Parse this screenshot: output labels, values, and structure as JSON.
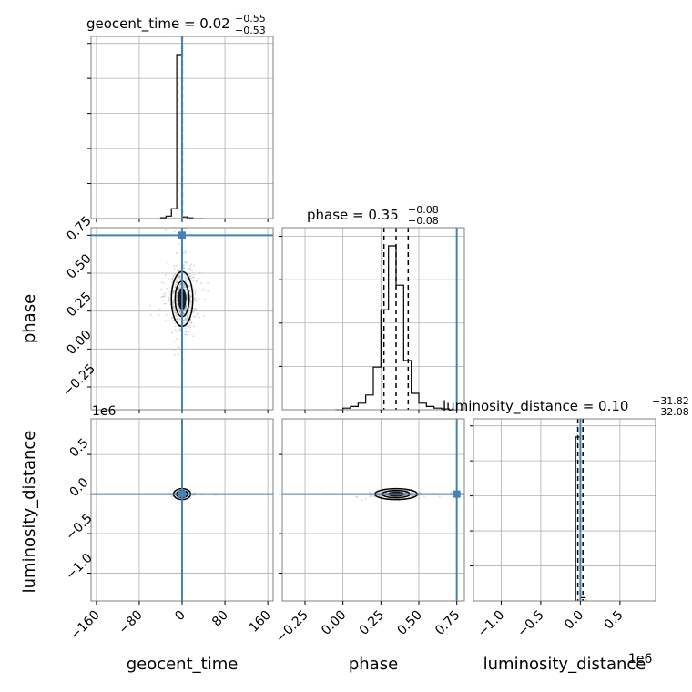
{
  "colors": {
    "truth": "#4682b4",
    "hist": "#000000",
    "grid": "#b0b0b0",
    "points": "#8c8c8c",
    "frame": "#808080",
    "background": "#ffffff"
  },
  "chart_data": {
    "type": "corner",
    "parameters": [
      "geocent_time",
      "phase",
      "luminosity_distance"
    ],
    "truths": {
      "geocent_time": 0,
      "phase": 0.75,
      "luminosity_distance": 0
    },
    "grid": true,
    "titles": [
      {
        "param": "geocent_time",
        "main": "geocent_time = 0.02",
        "sup": "+0.55",
        "sub": "−0.53"
      },
      {
        "param": "phase",
        "main": "phase = 0.35",
        "sup": "+0.08",
        "sub": "−0.08"
      },
      {
        "param": "luminosity_distance",
        "main": "luminosity_distance = 0.10",
        "sup": "+31.82",
        "sub": "−32.08"
      }
    ],
    "axes": {
      "geocent_time": {
        "range": [
          -170,
          170
        ],
        "ticks": [
          -160,
          -80,
          0,
          80,
          160
        ],
        "tick_labels": [
          "−160",
          "−80",
          "0",
          "80",
          "160"
        ],
        "label": "geocent_time"
      },
      "phase": {
        "range": [
          -0.4,
          0.8
        ],
        "ticks": [
          -0.25,
          0.0,
          0.25,
          0.5,
          0.75
        ],
        "tick_labels": [
          "−0.25",
          "0.00",
          "0.25",
          "0.50",
          "0.75"
        ],
        "label": "phase"
      },
      "luminosity_distance": {
        "range": [
          -1.35,
          0.95
        ],
        "ticks": [
          -1.0,
          -0.5,
          0.0,
          0.5
        ],
        "tick_labels": [
          "−1.0",
          "−0.5",
          "0.0",
          "0.5"
        ],
        "label": "luminosity_distance",
        "offset": "1e6"
      }
    },
    "histograms": {
      "geocent_time": {
        "bins": [
          -40,
          -30,
          -20,
          -10,
          0,
          10,
          20,
          30,
          40
        ],
        "values": [
          0.005,
          0.015,
          0.06,
          1.0,
          0.01,
          0.004,
          0.0,
          0.0
        ],
        "quantiles": [
          -0.51,
          0.02,
          0.57
        ],
        "yticks": 5
      },
      "phase": {
        "bins": [
          -0.05,
          0.0,
          0.05,
          0.1,
          0.15,
          0.2,
          0.25,
          0.3,
          0.35,
          0.4,
          0.45,
          0.5,
          0.55,
          0.6,
          0.65,
          0.7,
          0.75
        ],
        "values": [
          0.0,
          0.01,
          0.02,
          0.04,
          0.09,
          0.26,
          0.61,
          1.0,
          0.76,
          0.3,
          0.1,
          0.04,
          0.02,
          0.01,
          0.005,
          0.0
        ],
        "quantiles": [
          0.27,
          0.35,
          0.43
        ],
        "yticks": 4
      },
      "luminosity_distance": {
        "bins": [
          -0.06,
          0.0,
          0.06
        ],
        "values": [
          1.0,
          0.02
        ],
        "quantiles": [
          -0.032,
          0.0,
          0.032
        ],
        "yticks": 5
      }
    },
    "scatter": {
      "phase_vs_geocent_time": {
        "center": [
          0.0,
          0.33
        ],
        "spread": [
          10,
          0.09
        ],
        "count": 700
      },
      "luminosity_distance_vs_geocent_time": {
        "center": [
          0.0,
          0.0
        ],
        "spread": [
          8,
          0.01
        ],
        "count": 250
      },
      "luminosity_distance_vs_phase": {
        "center": [
          0.35,
          0.0
        ],
        "spread": [
          0.07,
          0.02
        ],
        "count": 300
      }
    }
  }
}
